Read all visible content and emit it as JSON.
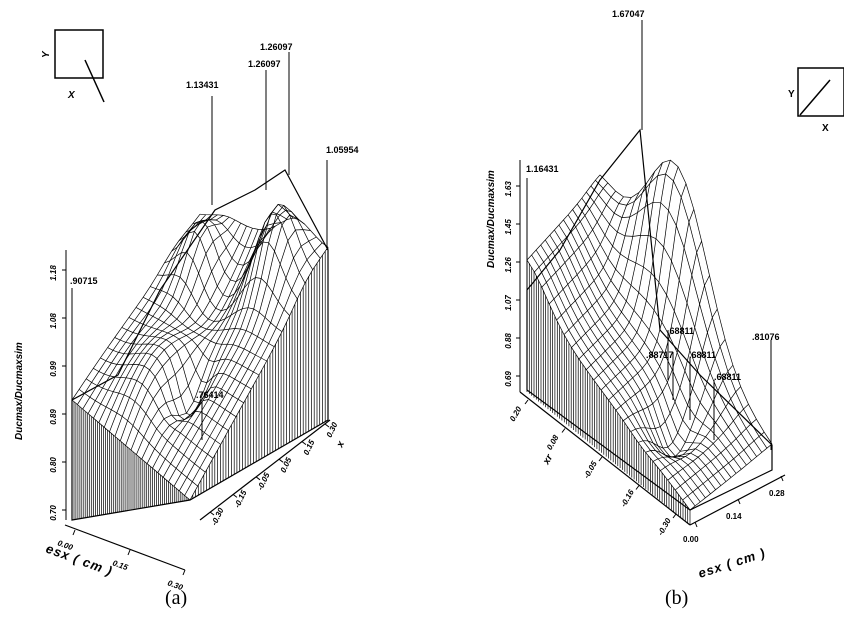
{
  "chart_data": [
    {
      "type": "surface",
      "panel_label": "(a)",
      "zlabel": "Ducmax/Ducmaxsim",
      "xlabel": "esx ( cm )",
      "ylabel": "x",
      "x_ticks": [
        "0.00",
        "0.15",
        "0.30"
      ],
      "y_ticks": [
        "-0.30",
        "-0.15",
        "-0.05",
        "0.05",
        "0.15",
        "0.30"
      ],
      "z_ticks": [
        "0.70",
        "0.80",
        "0.89",
        "0.99",
        "1.08",
        "1.18"
      ],
      "orientation": {
        "y": "Y",
        "x": "X"
      },
      "annotations": [
        "1.26097",
        "1.26097",
        "1.13431",
        "1.05954",
        ".90715",
        ".76414"
      ],
      "grid": true
    },
    {
      "type": "surface",
      "panel_label": "(b)",
      "zlabel": "Ducmax/Ducmaxsim",
      "xlabel": "esx ( cm )",
      "ylabel": "xr",
      "x_ticks": [
        "0.00",
        "0.14",
        "0.28"
      ],
      "y_ticks": [
        "0.20",
        "0.08",
        "-0.05",
        "-0.16",
        "-0.30"
      ],
      "z_ticks": [
        "0.69",
        "0.88",
        "1.07",
        "1.26",
        "1.45",
        "1.63"
      ],
      "orientation": {
        "y": "Y",
        "x": "X"
      },
      "annotations": [
        "1.67047",
        "1.16431",
        ".68811",
        ".68811",
        ".68811",
        ".81076",
        ".88717"
      ],
      "grid": true
    }
  ]
}
